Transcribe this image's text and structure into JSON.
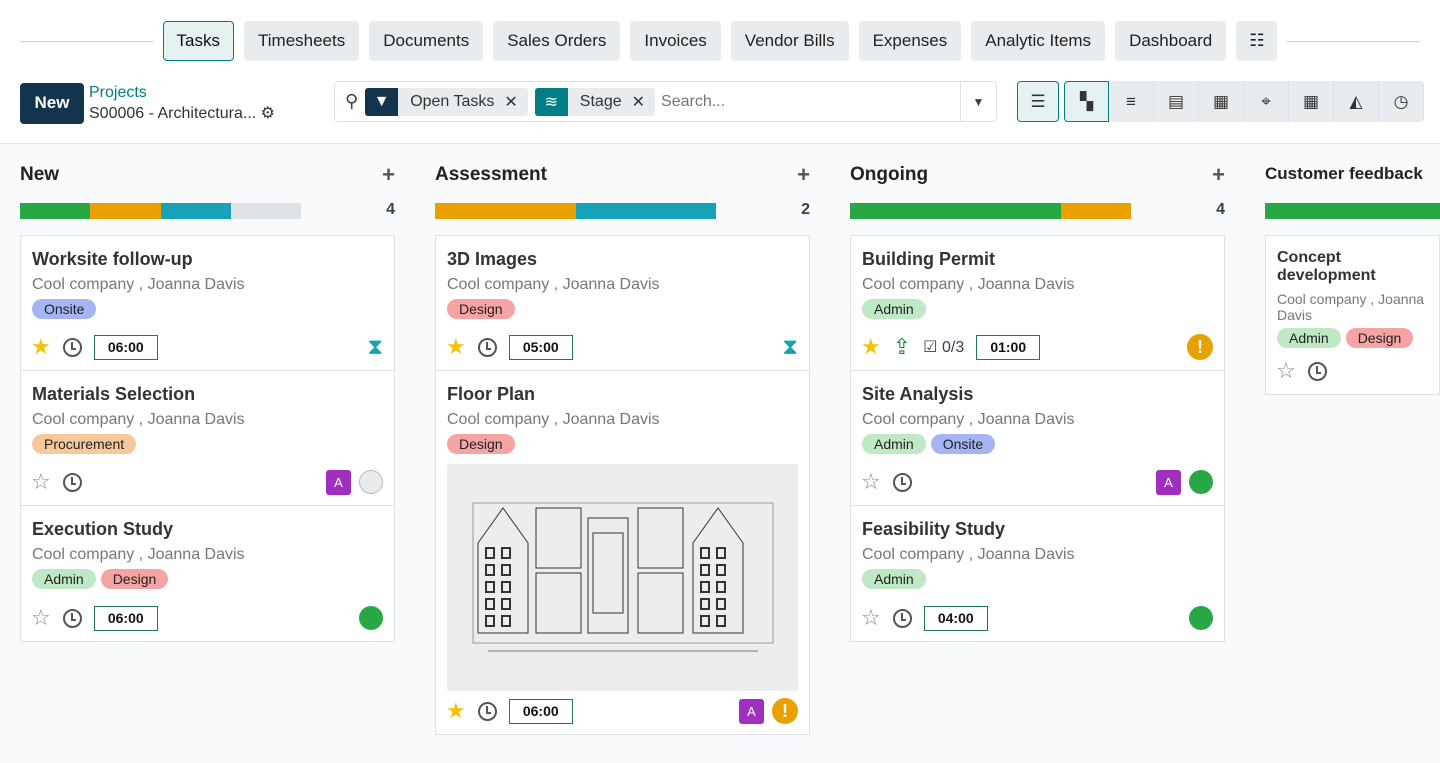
{
  "tabs": [
    {
      "label": "Tasks",
      "active": true
    },
    {
      "label": "Timesheets"
    },
    {
      "label": "Documents"
    },
    {
      "label": "Sales Orders"
    },
    {
      "label": "Invoices"
    },
    {
      "label": "Vendor Bills"
    },
    {
      "label": "Expenses"
    },
    {
      "label": "Analytic Items"
    },
    {
      "label": "Dashboard"
    }
  ],
  "control": {
    "new_label": "New",
    "breadcrumb_parent": "Projects",
    "breadcrumb_current": "S00006 - Architectura..."
  },
  "search": {
    "facets": [
      {
        "label": "Open Tasks",
        "icon": "filter-icon",
        "color": "#12344d"
      },
      {
        "label": "Stage",
        "icon": "layers-icon",
        "color": "#017e84"
      }
    ],
    "placeholder": "Search..."
  },
  "views": [
    "kanban-icon",
    "list-icon",
    "gantt-icon",
    "calendar-icon",
    "map-icon",
    "pivot-icon",
    "graph-icon",
    "activity-icon"
  ],
  "colors": {
    "green": "#28a745",
    "orange": "#e9a100",
    "teal": "#17a2b8",
    "grey": "#dee2e6"
  },
  "tag_colors": {
    "Onsite": "#a5b4f5",
    "Design": "#f5a3a3",
    "Procurement": "#f7c99a",
    "Admin": "#bfe8c4"
  },
  "columns": [
    {
      "title": "New",
      "count": "4",
      "progress": [
        [
          "green",
          1
        ],
        [
          "orange",
          1
        ],
        [
          "teal",
          1
        ],
        [
          "grey",
          1
        ]
      ],
      "cards": [
        {
          "title": "Worksite follow-up",
          "sub": "Cool company , Joanna Davis",
          "tags": [
            "Onsite"
          ],
          "starred": true,
          "time": "06:00",
          "status": "hourglass"
        },
        {
          "title": "Materials Selection",
          "sub": "Cool company , Joanna Davis",
          "tags": [
            "Procurement"
          ],
          "starred": false,
          "avatar": "A",
          "status": "grey"
        },
        {
          "title": "Execution Study",
          "sub": "Cool company , Joanna Davis",
          "tags": [
            "Admin",
            "Design"
          ],
          "starred": false,
          "time": "06:00",
          "status": "green"
        }
      ]
    },
    {
      "title": "Assessment",
      "count": "2",
      "progress": [
        [
          "orange",
          1
        ],
        [
          "teal",
          1
        ]
      ],
      "cards": [
        {
          "title": "3D Images",
          "sub": "Cool company , Joanna Davis",
          "tags": [
            "Design"
          ],
          "starred": true,
          "time": "05:00",
          "status": "hourglass"
        },
        {
          "title": "Floor Plan",
          "sub": "Cool company , Joanna Davis",
          "tags": [
            "Design"
          ],
          "starred": true,
          "time": "06:00",
          "avatar": "A",
          "status": "warning",
          "image": true
        }
      ]
    },
    {
      "title": "Ongoing",
      "count": "4",
      "progress": [
        [
          "green",
          3
        ],
        [
          "orange",
          1
        ]
      ],
      "cards": [
        {
          "title": "Building Permit",
          "sub": "Cool company , Joanna Davis",
          "tags": [
            "Admin"
          ],
          "starred": true,
          "upload": true,
          "checklist": "0/3",
          "time": "01:00",
          "status": "warning"
        },
        {
          "title": "Site Analysis",
          "sub": "Cool company , Joanna Davis",
          "tags": [
            "Admin",
            "Onsite"
          ],
          "starred": false,
          "avatar": "A",
          "status": "green"
        },
        {
          "title": "Feasibility Study",
          "sub": "Cool company , Joanna Davis",
          "tags": [
            "Admin"
          ],
          "starred": false,
          "time": "04:00",
          "status": "green"
        }
      ]
    },
    {
      "title": "Customer feedback",
      "count": "",
      "progress": [
        [
          "green",
          1
        ]
      ],
      "cards": [
        {
          "title": "Concept development",
          "sub": "Cool company , Joanna Davis",
          "tags": [
            "Admin",
            "Design"
          ],
          "starred": false
        }
      ]
    }
  ]
}
